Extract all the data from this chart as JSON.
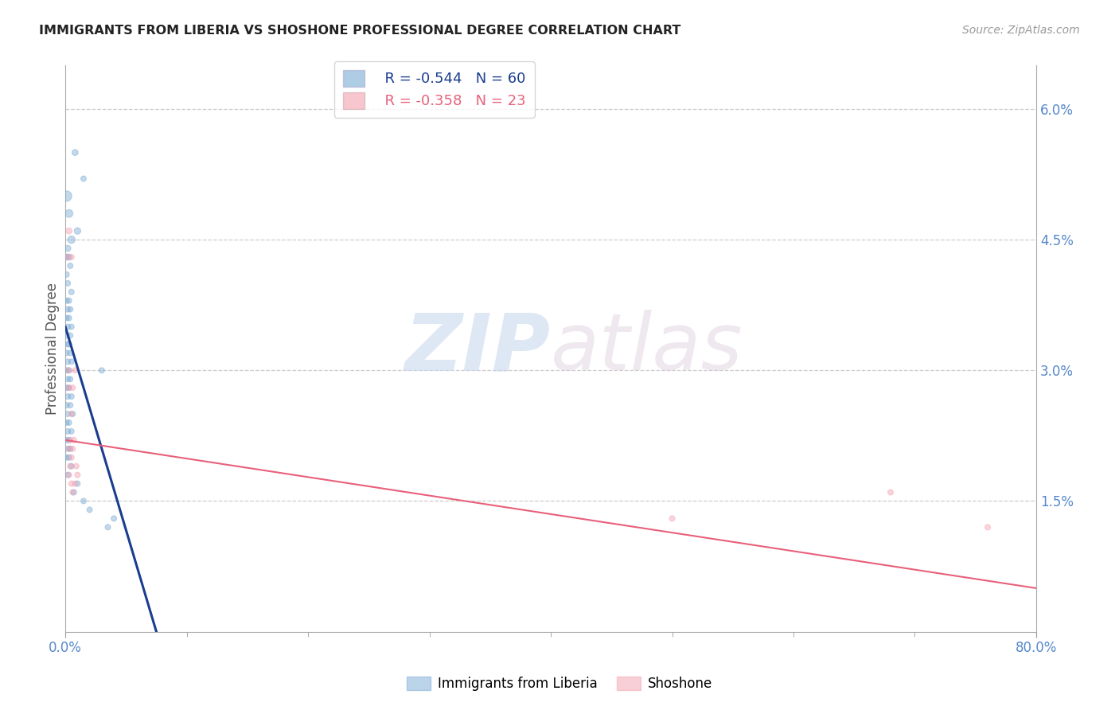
{
  "title": "IMMIGRANTS FROM LIBERIA VS SHOSHONE PROFESSIONAL DEGREE CORRELATION CHART",
  "source": "Source: ZipAtlas.com",
  "ylabel": "Professional Degree",
  "xmin": 0.0,
  "xmax": 0.8,
  "ymin": 0.0,
  "ymax": 0.065,
  "legend_r1": "R = -0.544",
  "legend_n1": "N = 60",
  "legend_r2": "R = -0.358",
  "legend_n2": "N = 23",
  "color_blue": "#7aaad4",
  "color_pink": "#f4a0b0",
  "color_line_blue": "#1a3d8f",
  "color_line_pink": "#e8607a",
  "color_text_blue": "#5588cc",
  "watermark_zip": "ZIP",
  "watermark_atlas": "atlas",
  "liberia_points": [
    [
      0.008,
      0.055
    ],
    [
      0.015,
      0.052
    ],
    [
      0.001,
      0.05
    ],
    [
      0.003,
      0.048
    ],
    [
      0.01,
      0.046
    ],
    [
      0.005,
      0.045
    ],
    [
      0.002,
      0.044
    ],
    [
      0.001,
      0.043
    ],
    [
      0.003,
      0.043
    ],
    [
      0.004,
      0.042
    ],
    [
      0.001,
      0.041
    ],
    [
      0.002,
      0.04
    ],
    [
      0.005,
      0.039
    ],
    [
      0.001,
      0.038
    ],
    [
      0.003,
      0.038
    ],
    [
      0.002,
      0.037
    ],
    [
      0.004,
      0.037
    ],
    [
      0.001,
      0.036
    ],
    [
      0.003,
      0.036
    ],
    [
      0.002,
      0.035
    ],
    [
      0.005,
      0.035
    ],
    [
      0.001,
      0.034
    ],
    [
      0.004,
      0.034
    ],
    [
      0.002,
      0.033
    ],
    [
      0.003,
      0.033
    ],
    [
      0.001,
      0.032
    ],
    [
      0.004,
      0.032
    ],
    [
      0.002,
      0.031
    ],
    [
      0.005,
      0.031
    ],
    [
      0.001,
      0.03
    ],
    [
      0.003,
      0.03
    ],
    [
      0.03,
      0.03
    ],
    [
      0.002,
      0.029
    ],
    [
      0.004,
      0.029
    ],
    [
      0.001,
      0.028
    ],
    [
      0.003,
      0.028
    ],
    [
      0.002,
      0.027
    ],
    [
      0.005,
      0.027
    ],
    [
      0.001,
      0.026
    ],
    [
      0.004,
      0.026
    ],
    [
      0.002,
      0.025
    ],
    [
      0.006,
      0.025
    ],
    [
      0.003,
      0.024
    ],
    [
      0.001,
      0.024
    ],
    [
      0.002,
      0.023
    ],
    [
      0.005,
      0.023
    ],
    [
      0.001,
      0.022
    ],
    [
      0.003,
      0.022
    ],
    [
      0.002,
      0.021
    ],
    [
      0.004,
      0.021
    ],
    [
      0.001,
      0.02
    ],
    [
      0.003,
      0.02
    ],
    [
      0.005,
      0.019
    ],
    [
      0.002,
      0.018
    ],
    [
      0.01,
      0.017
    ],
    [
      0.007,
      0.016
    ],
    [
      0.015,
      0.015
    ],
    [
      0.02,
      0.014
    ],
    [
      0.04,
      0.013
    ],
    [
      0.035,
      0.012
    ]
  ],
  "liberia_sizes": [
    30,
    25,
    90,
    50,
    35,
    45,
    30,
    30,
    30,
    25,
    25,
    25,
    25,
    25,
    25,
    25,
    25,
    25,
    25,
    25,
    25,
    25,
    25,
    25,
    25,
    25,
    25,
    25,
    25,
    25,
    25,
    25,
    25,
    25,
    25,
    25,
    25,
    25,
    25,
    25,
    25,
    25,
    25,
    25,
    25,
    25,
    25,
    25,
    25,
    25,
    25,
    25,
    25,
    25,
    25,
    25,
    25,
    25,
    25,
    25
  ],
  "shoshone_points": [
    [
      0.003,
      0.046
    ],
    [
      0.001,
      0.043
    ],
    [
      0.005,
      0.043
    ],
    [
      0.003,
      0.03
    ],
    [
      0.008,
      0.03
    ],
    [
      0.003,
      0.028
    ],
    [
      0.006,
      0.028
    ],
    [
      0.005,
      0.025
    ],
    [
      0.004,
      0.022
    ],
    [
      0.007,
      0.022
    ],
    [
      0.003,
      0.021
    ],
    [
      0.006,
      0.021
    ],
    [
      0.005,
      0.02
    ],
    [
      0.004,
      0.019
    ],
    [
      0.009,
      0.019
    ],
    [
      0.003,
      0.018
    ],
    [
      0.01,
      0.018
    ],
    [
      0.005,
      0.017
    ],
    [
      0.008,
      0.017
    ],
    [
      0.006,
      0.016
    ],
    [
      0.5,
      0.013
    ],
    [
      0.68,
      0.016
    ],
    [
      0.76,
      0.012
    ]
  ],
  "shoshone_sizes": [
    30,
    25,
    25,
    25,
    25,
    25,
    25,
    25,
    25,
    25,
    25,
    25,
    25,
    25,
    25,
    25,
    25,
    25,
    25,
    25,
    25,
    25,
    25
  ],
  "blue_line_x": [
    0.0,
    0.075
  ],
  "blue_line_y": [
    0.035,
    0.0
  ],
  "pink_line_x": [
    0.0,
    0.8
  ],
  "pink_line_y": [
    0.022,
    0.005
  ]
}
